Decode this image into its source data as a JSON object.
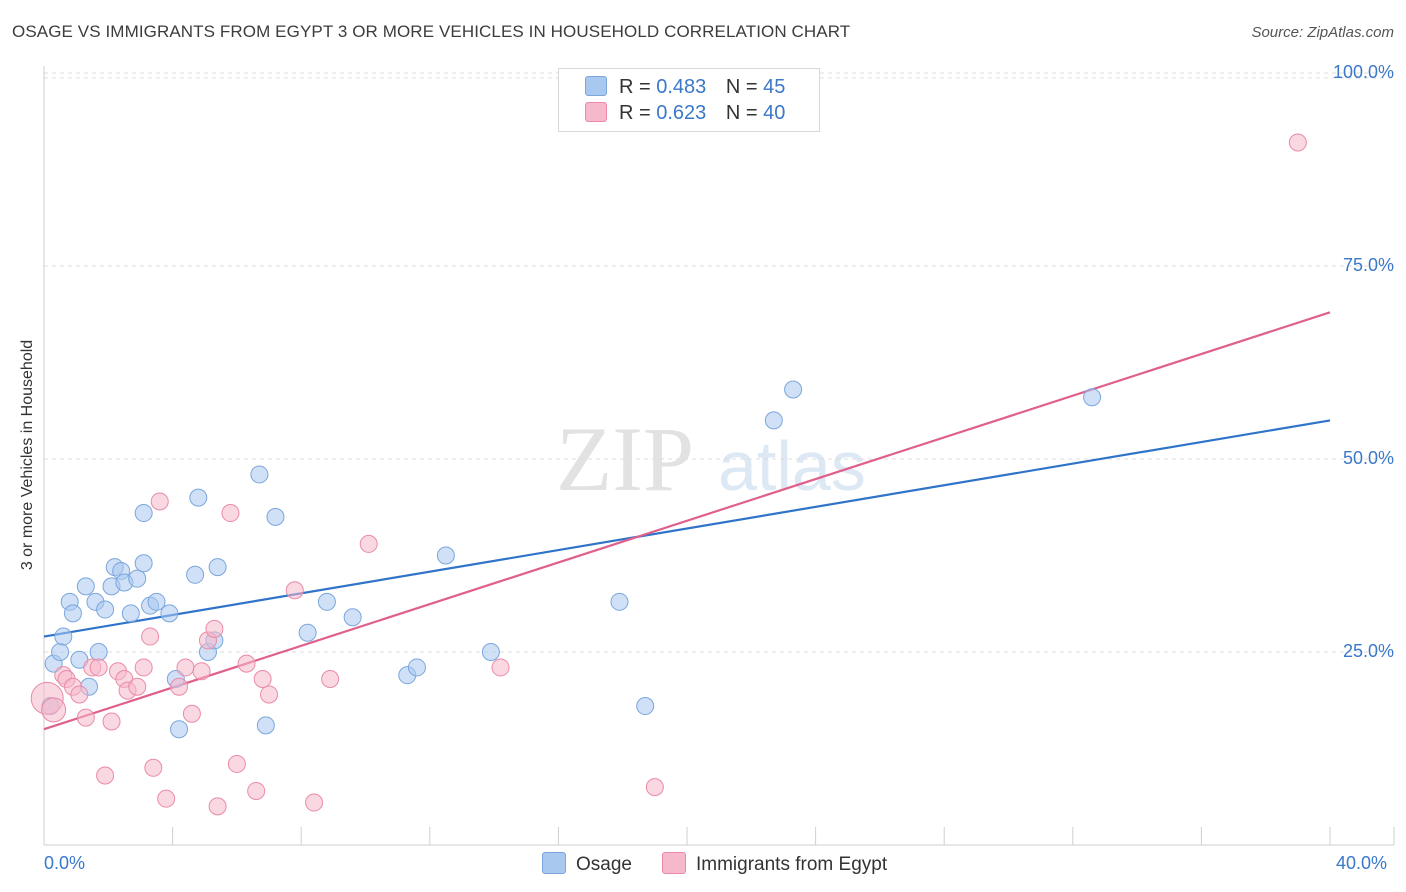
{
  "header": {
    "title": "OSAGE VS IMMIGRANTS FROM EGYPT 3 OR MORE VEHICLES IN HOUSEHOLD CORRELATION CHART",
    "source": "Source: ZipAtlas.com"
  },
  "legend": {
    "r_label": "R =",
    "n_label": "N =",
    "rows": [
      {
        "r": "0.483",
        "n": "45",
        "color": "#a9c8f0"
      },
      {
        "r": "0.623",
        "n": "40",
        "color": "#f6b8cb"
      }
    ]
  },
  "bottom_legend": [
    "Osage",
    "Immigrants from Egypt"
  ],
  "chart_data": {
    "type": "scatter",
    "title": "OSAGE VS IMMIGRANTS FROM EGYPT 3 OR MORE VEHICLES IN HOUSEHOLD CORRELATION CHART",
    "xlabel": "",
    "ylabel": "3 or more Vehicles in Household",
    "xlim": [
      0,
      40
    ],
    "ylim": [
      0,
      100
    ],
    "x_tick_labels": {
      "left": "0.0%",
      "right": "40.0%"
    },
    "y_ticks": [
      25,
      50,
      75,
      100
    ],
    "y_tick_labels": [
      "25.0%",
      "50.0%",
      "75.0%",
      "100.0%"
    ],
    "grid": true,
    "legend_position": "top-center",
    "series": [
      {
        "name": "Osage",
        "color": "#a9c8f0",
        "stroke": "#7aa6dc",
        "line_color": "#2f74c9",
        "trend": [
          [
            0,
            27.0
          ],
          [
            40,
            55.0
          ]
        ],
        "points": [
          [
            0.2,
            18.0
          ],
          [
            0.3,
            23.5
          ],
          [
            0.5,
            25.0
          ],
          [
            0.6,
            27.0
          ],
          [
            0.8,
            31.5
          ],
          [
            0.9,
            30.0
          ],
          [
            1.1,
            24.0
          ],
          [
            1.3,
            33.5
          ],
          [
            1.4,
            20.5
          ],
          [
            1.6,
            31.5
          ],
          [
            1.7,
            25.0
          ],
          [
            1.9,
            30.5
          ],
          [
            2.1,
            33.5
          ],
          [
            2.2,
            36.0
          ],
          [
            2.4,
            35.5
          ],
          [
            2.5,
            34.0
          ],
          [
            2.7,
            30.0
          ],
          [
            2.9,
            34.5
          ],
          [
            3.1,
            36.5
          ],
          [
            3.1,
            43.0
          ],
          [
            3.3,
            31.0
          ],
          [
            3.5,
            31.5
          ],
          [
            3.9,
            30.0
          ],
          [
            4.1,
            21.5
          ],
          [
            4.2,
            15.0
          ],
          [
            4.7,
            35.0
          ],
          [
            4.8,
            45.0
          ],
          [
            5.1,
            25.0
          ],
          [
            5.3,
            26.5
          ],
          [
            5.4,
            36.0
          ],
          [
            6.7,
            48.0
          ],
          [
            6.9,
            15.5
          ],
          [
            7.2,
            42.5
          ],
          [
            8.2,
            27.5
          ],
          [
            8.8,
            31.5
          ],
          [
            9.6,
            29.5
          ],
          [
            11.3,
            22.0
          ],
          [
            11.6,
            23.0
          ],
          [
            12.5,
            37.5
          ],
          [
            13.9,
            25.0
          ],
          [
            17.9,
            31.5
          ],
          [
            18.7,
            18.0
          ],
          [
            22.7,
            55.0
          ],
          [
            23.3,
            59.0
          ],
          [
            32.6,
            58.0
          ]
        ]
      },
      {
        "name": "Immigrants from Egypt",
        "color": "#f6b8cb",
        "stroke": "#ea8aa7",
        "line_color": "#e0608c",
        "trend": [
          [
            0,
            15.0
          ],
          [
            40,
            69.0
          ]
        ],
        "points": [
          [
            0.1,
            19.0
          ],
          [
            0.3,
            17.5
          ],
          [
            0.6,
            22.0
          ],
          [
            0.7,
            21.5
          ],
          [
            0.9,
            20.5
          ],
          [
            1.1,
            19.5
          ],
          [
            1.3,
            16.5
          ],
          [
            1.5,
            23.0
          ],
          [
            1.7,
            23.0
          ],
          [
            1.9,
            9.0
          ],
          [
            2.1,
            16.0
          ],
          [
            2.3,
            22.5
          ],
          [
            2.5,
            21.5
          ],
          [
            2.6,
            20.0
          ],
          [
            2.9,
            20.5
          ],
          [
            3.1,
            23.0
          ],
          [
            3.3,
            27.0
          ],
          [
            3.4,
            10.0
          ],
          [
            3.6,
            44.5
          ],
          [
            3.8,
            6.0
          ],
          [
            4.2,
            20.5
          ],
          [
            4.4,
            23.0
          ],
          [
            4.6,
            17.0
          ],
          [
            4.9,
            22.5
          ],
          [
            5.1,
            26.5
          ],
          [
            5.3,
            28.0
          ],
          [
            5.4,
            5.0
          ],
          [
            5.8,
            43.0
          ],
          [
            6.0,
            10.5
          ],
          [
            6.3,
            23.5
          ],
          [
            6.6,
            7.0
          ],
          [
            6.8,
            21.5
          ],
          [
            7.0,
            19.5
          ],
          [
            7.8,
            33.0
          ],
          [
            8.4,
            5.5
          ],
          [
            8.9,
            21.5
          ],
          [
            10.1,
            39.0
          ],
          [
            14.2,
            23.0
          ],
          [
            19.0,
            7.5
          ],
          [
            39.0,
            91.0
          ]
        ]
      }
    ]
  }
}
